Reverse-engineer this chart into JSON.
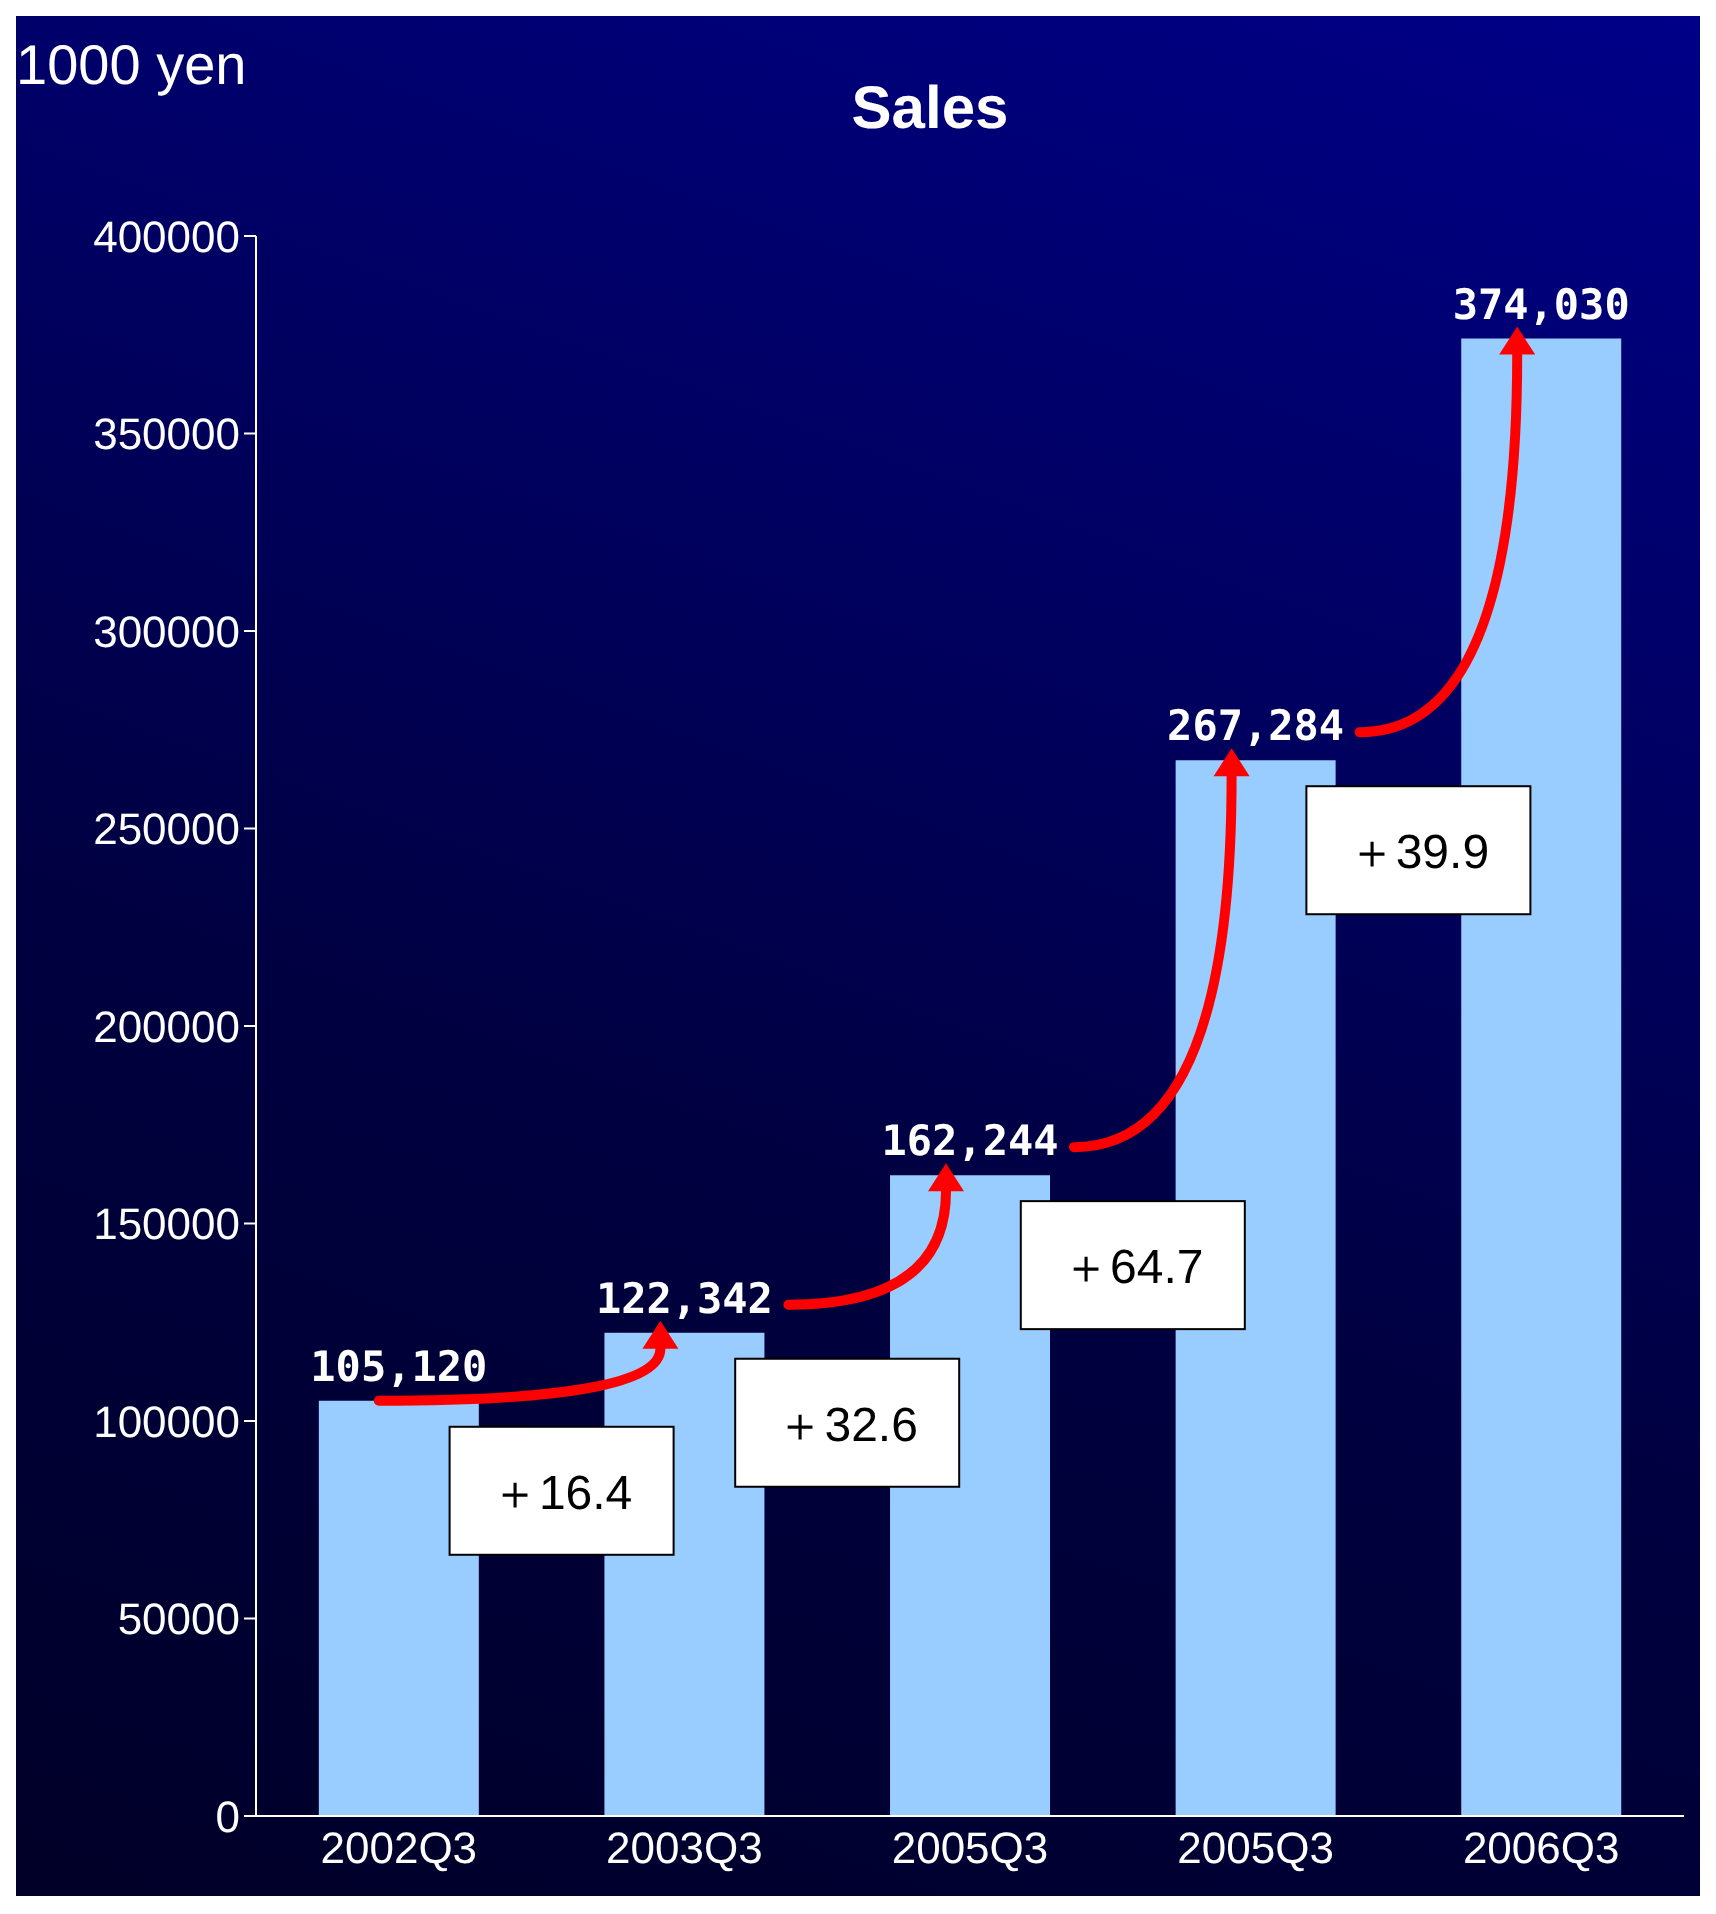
{
  "chart_data": {
    "type": "bar",
    "title": "Sales",
    "ylabel": "1000 yen",
    "categories": [
      "2002Q3",
      "2003Q3",
      "2005Q3",
      "2005Q3",
      "2006Q3"
    ],
    "values": [
      105120,
      122342,
      162244,
      267284,
      374030
    ],
    "value_labels": [
      "105,120",
      "122,342",
      "162,244",
      "267,284",
      "374,030"
    ],
    "color": "#99ccff",
    "ylim": [
      0,
      400000
    ],
    "yticks": [
      0,
      50000,
      100000,
      150000,
      200000,
      250000,
      300000,
      350000,
      400000
    ],
    "grid": false,
    "legend": false,
    "annotations": [
      "＋16.4",
      "＋32.6",
      "＋64.7",
      "＋39.9"
    ]
  }
}
